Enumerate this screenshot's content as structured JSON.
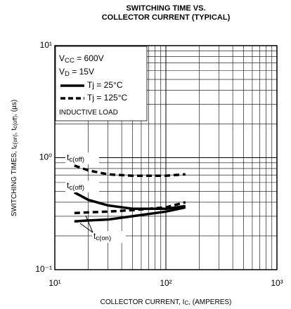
{
  "chart_data": {
    "type": "line",
    "title": [
      "SWITCHING TIME VS.",
      "COLLECTOR CURRENT (TYPICAL)"
    ],
    "xlabel": [
      "COLLECTOR CURRENT, I",
      "C",
      ", (AMPERES)"
    ],
    "ylabel": [
      "SWITCHING TIMES, t",
      "c(on)",
      ", t",
      "c(off)",
      ", (µs)"
    ],
    "xscale": "log",
    "yscale": "log",
    "grid": true,
    "minor_grid": true,
    "xlim": [
      10,
      1000
    ],
    "ylim": [
      0.1,
      10
    ],
    "xticks": [
      {
        "value": 10,
        "label": "10¹"
      },
      {
        "value": 100,
        "label": "10²"
      },
      {
        "value": 1000,
        "label": "10³"
      }
    ],
    "yticks": [
      {
        "value": 0.1,
        "label": "10⁻¹"
      },
      {
        "value": 1,
        "label": "10⁰"
      },
      {
        "value": 10,
        "label": "10¹"
      }
    ],
    "conditions": [
      [
        "V",
        "CC",
        " = 600V"
      ],
      [
        "V",
        "D",
        " = 15V"
      ],
      [
        "INDUCTIVE LOAD"
      ]
    ],
    "curve_labels": [
      [
        "t",
        "c(off)"
      ],
      [
        "t",
        "c(off)"
      ],
      [
        "t",
        "c(on)"
      ]
    ],
    "x": [
      15,
      20,
      30,
      50,
      100,
      150
    ],
    "series": [
      {
        "name": "Tj = 25°C",
        "color": "#000000",
        "dash": false,
        "values": [
          0.49,
          0.42,
          0.375,
          0.35,
          0.35,
          0.37
        ]
      },
      {
        "name": "Tj = 125°C",
        "color": "#000000",
        "dash": true,
        "values": [
          0.85,
          0.77,
          0.71,
          0.69,
          0.69,
          0.71
        ]
      },
      {
        "name": "Tj = 25°C",
        "color": "#000000",
        "dash": false,
        "values": [
          0.27,
          0.275,
          0.28,
          0.3,
          0.33,
          0.36
        ]
      },
      {
        "name": "Tj = 125°C",
        "color": "#000000",
        "dash": true,
        "values": [
          0.32,
          0.325,
          0.33,
          0.34,
          0.36,
          0.4
        ]
      }
    ]
  }
}
